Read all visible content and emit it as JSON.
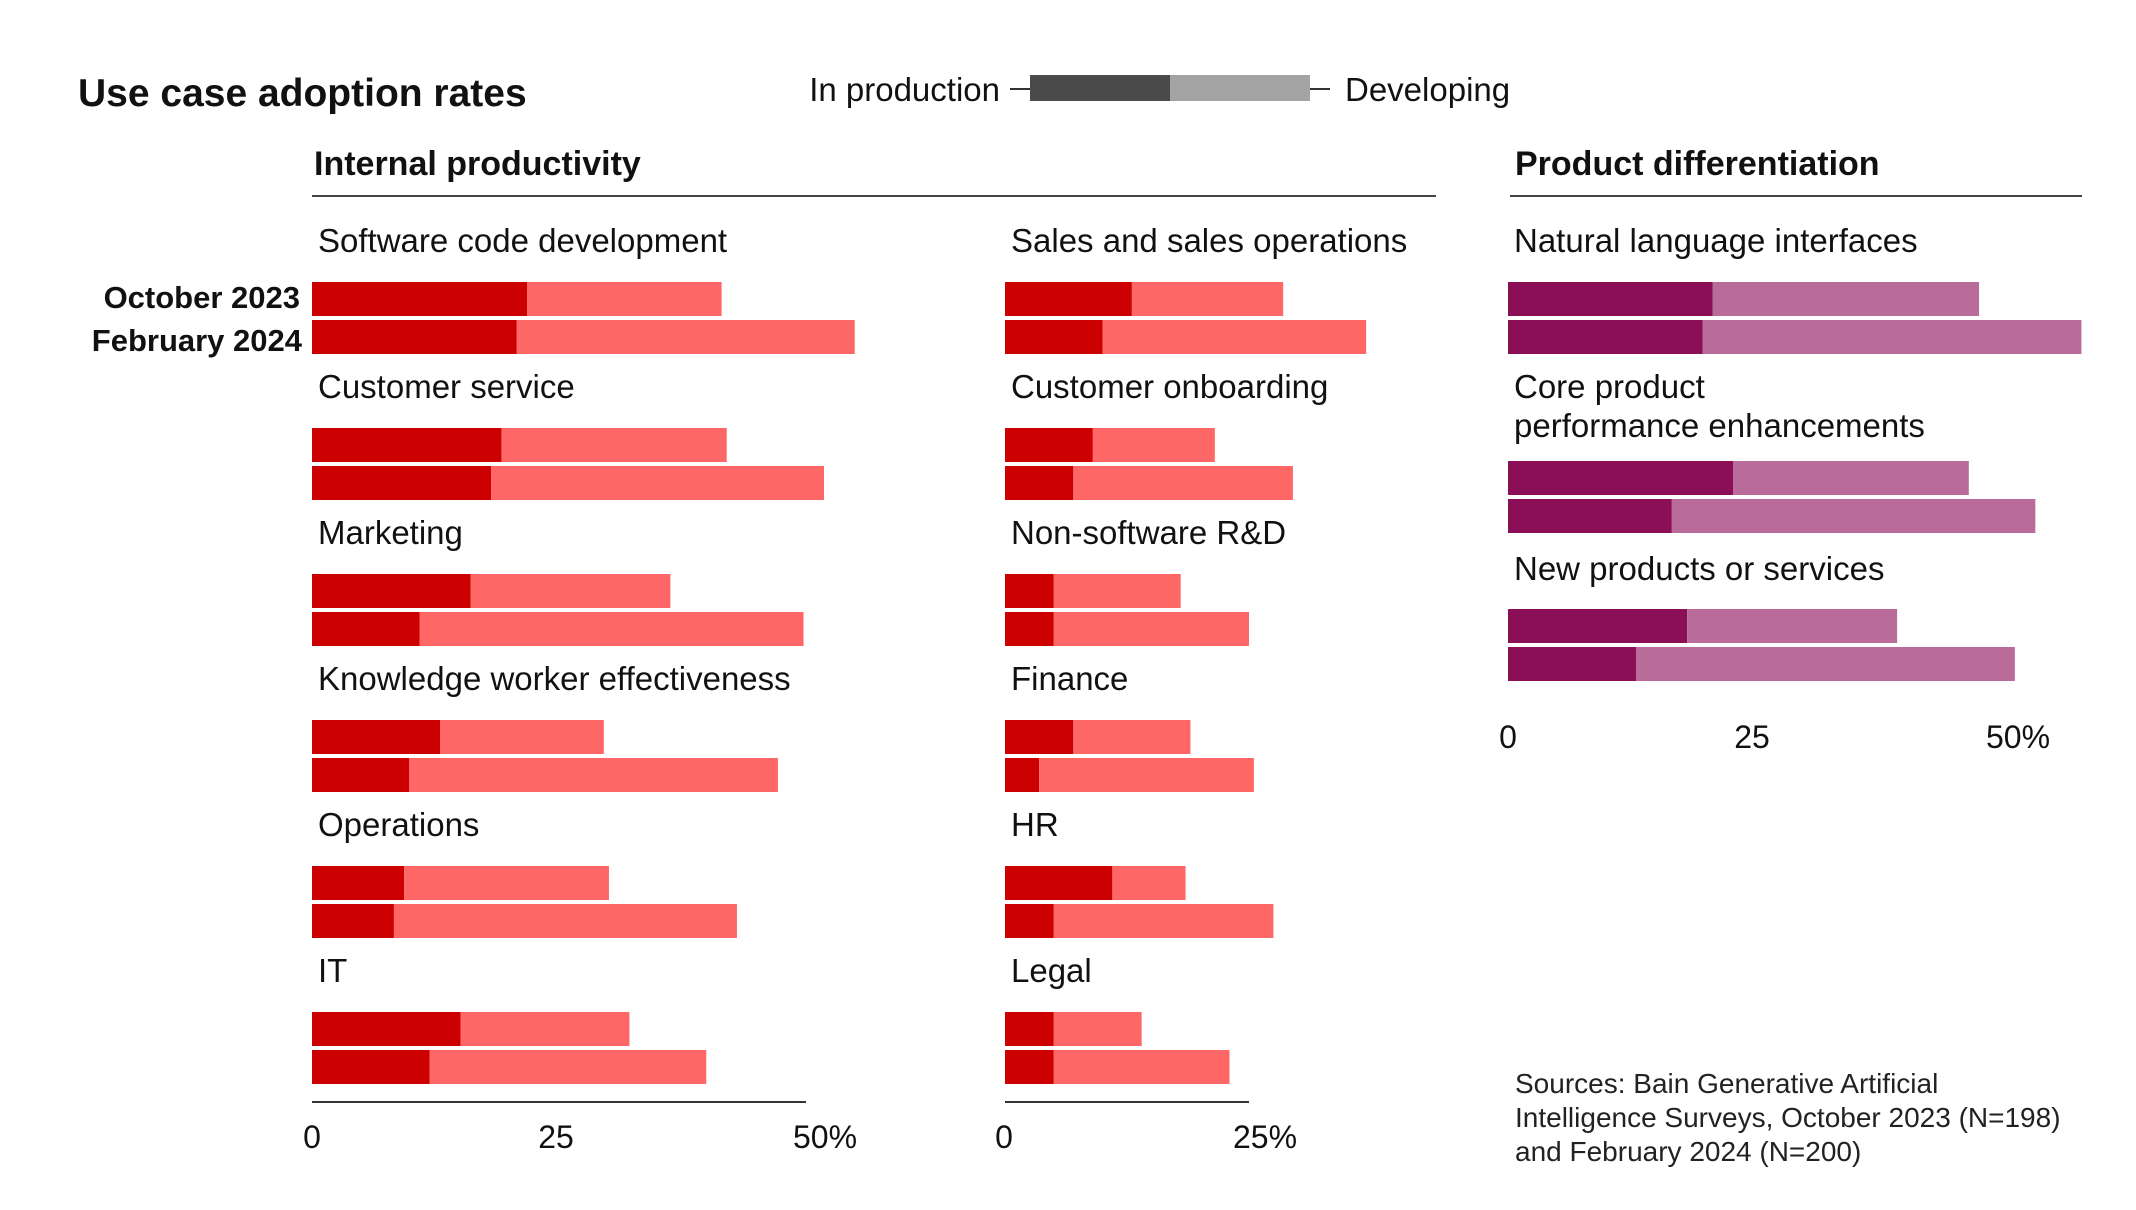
{
  "title": "Use case adoption rates",
  "legend": {
    "in_production": "In production",
    "developing": "Developing"
  },
  "period_labels": [
    "October 2023",
    "February 2024"
  ],
  "sections": {
    "internal": "Internal productivity",
    "product": "Product differentiation"
  },
  "colors": {
    "internal_production": "#cc0000",
    "internal_developing": "#ff6666",
    "product_production": "#8b0f56",
    "product_developing": "#b96b9a",
    "legend_production": "#4a4a4a",
    "legend_developing": "#a3a3a3",
    "axis": "#333333"
  },
  "source": "Sources: Bain Generative Artificial Intelligence Surveys, October 2023 (N=198) and February 2024 (N=200)",
  "chart_data": [
    {
      "type": "bar",
      "orientation": "horizontal",
      "stacked": true,
      "section": "Internal productivity",
      "categories": [
        "Software code development",
        "Customer service",
        "Marketing",
        "Knowledge worker effectiveness",
        "Operations",
        "IT"
      ],
      "series": [
        {
          "name": "In production",
          "values": {
            "October 2023": [
              21,
              18.5,
              15.5,
              12.5,
              9,
              14.5
            ],
            "February 2024": [
              20,
              17.5,
              10.5,
              9.5,
              8,
              11.5
            ]
          }
        },
        {
          "name": "Developing",
          "values": {
            "October 2023": [
              19,
              22,
              19.5,
              16,
              20,
              16.5
            ],
            "February 2024": [
              33,
              32.5,
              37.5,
              36,
              33.5,
              27
            ]
          }
        }
      ],
      "tick_labels": [
        "0",
        "25",
        "50%"
      ],
      "xlim": [
        0,
        50
      ]
    },
    {
      "type": "bar",
      "orientation": "horizontal",
      "stacked": true,
      "section": "Internal productivity",
      "categories": [
        "Sales and sales operations",
        "Customer onboarding",
        "Non-software R&D",
        "Finance",
        "HR",
        "Legal"
      ],
      "series": [
        {
          "name": "In production",
          "values": {
            "October 2023": [
              13,
              9,
              5,
              7,
              11,
              5
            ],
            "February 2024": [
              10,
              7,
              5,
              3.5,
              5,
              5
            ]
          }
        },
        {
          "name": "Developing",
          "values": {
            "October 2023": [
              15.5,
              12.5,
              13,
              12,
              7.5,
              9
            ],
            "February 2024": [
              27,
              22.5,
              20,
              22,
              22.5,
              18
            ]
          }
        }
      ],
      "tick_labels": [
        "0",
        "25%"
      ],
      "xlim": [
        0,
        25
      ]
    },
    {
      "type": "bar",
      "orientation": "horizontal",
      "stacked": true,
      "section": "Product differentiation",
      "categories": [
        "Natural language interfaces",
        "Core product performance enhancements",
        "New products or services"
      ],
      "category_lines": [
        [
          "Natural language interfaces"
        ],
        [
          "Core product",
          "performance enhancements"
        ],
        [
          "New products or services"
        ]
      ],
      "series": [
        {
          "name": "In production",
          "values": {
            "October 2023": [
              20,
              22,
              17.5
            ],
            "February 2024": [
              19,
              16,
              12.5
            ]
          }
        },
        {
          "name": "Developing",
          "values": {
            "October 2023": [
              26,
              23,
              20.5
            ],
            "February 2024": [
              37,
              35.5,
              37
            ]
          }
        }
      ],
      "tick_labels": [
        "0",
        "25",
        "50%"
      ],
      "xlim": [
        0,
        50
      ]
    }
  ]
}
